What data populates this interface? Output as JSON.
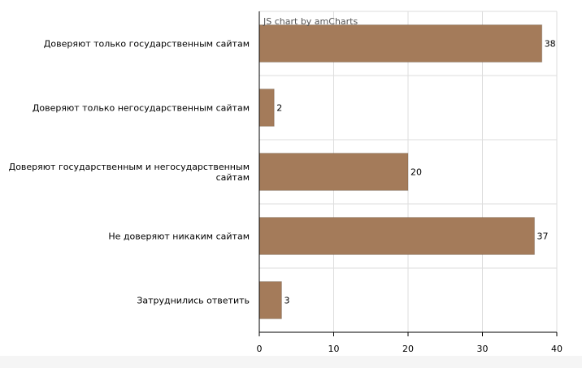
{
  "credit": "JS chart by amCharts",
  "chart_data": {
    "type": "bar",
    "orientation": "horizontal",
    "categories": [
      [
        "Доверяют только государственным сайтам"
      ],
      [
        "Доверяют только негосударственным сайтам"
      ],
      [
        "Доверяют государственным и негосударственным",
        "сайтам"
      ],
      [
        "Не доверяют никаким сайтам"
      ],
      [
        "Затруднились ответить"
      ]
    ],
    "values": [
      38,
      2,
      20,
      37,
      3
    ],
    "xlim": [
      0,
      40
    ],
    "xticks": [
      0,
      10,
      20,
      30,
      40
    ],
    "grid": true,
    "bar_color": "#a47b5a",
    "grid_color": "#dddddd",
    "axis_color": "#000000"
  }
}
